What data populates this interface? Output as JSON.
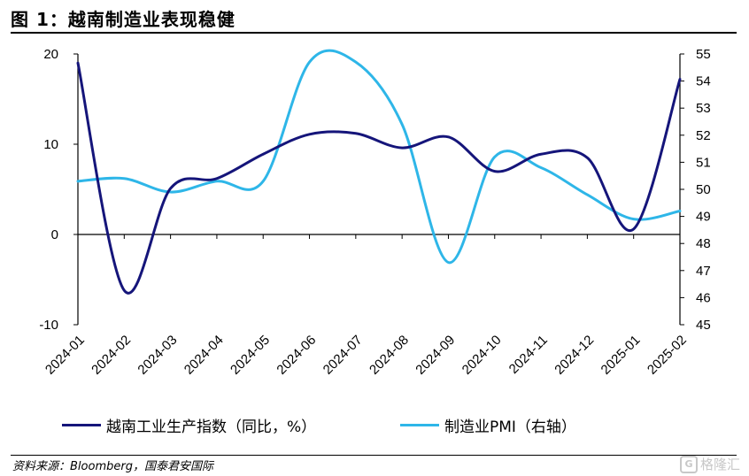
{
  "title": "图 1：越南制造业表现稳健",
  "source": "资料来源：Bloomberg，国泰君安国际",
  "watermark": "格隆汇",
  "colors": {
    "ip": "#15157a",
    "pmi": "#2eb6e8"
  },
  "chart_data": {
    "type": "line",
    "categories": [
      "2024-01",
      "2024-02",
      "2024-03",
      "2024-04",
      "2024-05",
      "2024-06",
      "2024-07",
      "2024-08",
      "2024-09",
      "2024-10",
      "2024-11",
      "2024-12",
      "2025-01",
      "2025-02"
    ],
    "series": [
      {
        "name": "越南工业生产指数（同比，%）",
        "axis": "left",
        "values": [
          19.0,
          -6.2,
          5.1,
          6.2,
          8.9,
          11.1,
          11.2,
          9.6,
          10.8,
          7.0,
          8.9,
          8.5,
          0.6,
          17.2
        ]
      },
      {
        "name": "制造业PMI（右轴）",
        "axis": "right",
        "values": [
          50.3,
          50.4,
          49.9,
          50.3,
          50.3,
          54.7,
          54.7,
          52.4,
          47.3,
          51.2,
          50.8,
          49.8,
          48.9,
          49.2
        ]
      }
    ],
    "yleft": {
      "range": [
        -10,
        20
      ],
      "ticks": [
        "20",
        "10",
        "0",
        "-10"
      ]
    },
    "yright": {
      "range": [
        45,
        55
      ],
      "ticks": [
        "55",
        "54",
        "53",
        "52",
        "51",
        "50",
        "49",
        "48",
        "47",
        "46",
        "45"
      ]
    },
    "legend_position": "bottom"
  }
}
